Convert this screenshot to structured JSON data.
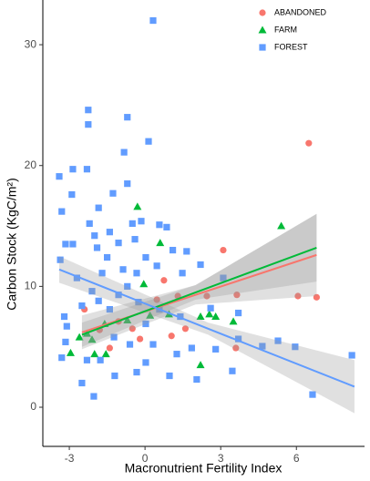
{
  "chart_data": {
    "type": "scatter",
    "x_label": "Macronutrient Fertility Index",
    "y_label": "Carbon Stock (KgC/m²)",
    "xlim": [
      -4.05,
      8.7
    ],
    "ylim": [
      -3.24,
      33.7
    ],
    "xticks": [
      -3,
      0,
      3,
      6
    ],
    "yticks": [
      0,
      10,
      20,
      30
    ],
    "grid": false,
    "legend": "top-right",
    "series": [
      {
        "name": "ABANDONED",
        "color": "#F8766D",
        "marker": "circle",
        "x": [
          6.49,
          3.1,
          6.06,
          6.8,
          3.64,
          0.75,
          1.3,
          2.45,
          0.47,
          3.6,
          1.6,
          -0.2,
          1.05,
          -2.4,
          -1.05,
          -1.8,
          -0.5,
          -1.4
        ],
        "y": [
          21.85,
          13.0,
          9.2,
          9.1,
          9.3,
          10.5,
          9.2,
          9.2,
          8.9,
          4.9,
          6.5,
          5.65,
          5.9,
          8.1,
          7.1,
          6.4,
          6.5,
          4.9
        ],
        "fit": {
          "x": [
            -2.5,
            2.0,
            6.8
          ],
          "y": [
            6.2,
            9.3,
            12.6
          ],
          "lower": [
            4.8,
            8.5,
            9.2
          ],
          "upper": [
            7.6,
            10.1,
            16.0
          ]
        }
      },
      {
        "name": "FARM",
        "color": "#00BA38",
        "marker": "triangle",
        "x": [
          -0.3,
          5.4,
          0.6,
          -0.05,
          2.55,
          3.5,
          2.8,
          2.2,
          2.2,
          -2.95,
          -2.6,
          -2.3,
          -2.0,
          -1.6,
          -0.7,
          0.2,
          -2.1,
          -1.55,
          0.95
        ],
        "y": [
          16.6,
          15.0,
          13.6,
          10.2,
          7.7,
          7.1,
          7.5,
          7.5,
          3.5,
          4.5,
          5.8,
          6.1,
          4.4,
          6.9,
          7.2,
          7.6,
          5.6,
          4.4,
          7.7
        ],
        "fit": {
          "x": [
            -2.5,
            2.0,
            6.8
          ],
          "y": [
            6.0,
            9.5,
            13.2
          ],
          "lower": [
            5.0,
            8.9,
            10.4
          ],
          "upper": [
            7.0,
            10.1,
            16.0
          ]
        }
      },
      {
        "name": "FOREST",
        "color": "#619CFF",
        "marker": "square",
        "x": [
          0.32,
          -2.25,
          -2.25,
          -0.7,
          0.14,
          -0.83,
          -3.4,
          -2.86,
          -2.9,
          -2.3,
          -1.84,
          -1.27,
          -0.7,
          -3.3,
          -2.2,
          -0.5,
          -0.15,
          0.57,
          0.86,
          -2.0,
          -1.4,
          -3.15,
          -2.86,
          -1.9,
          -1.05,
          -0.4,
          1.1,
          1.65,
          -3.36,
          -1.5,
          -0.87,
          0.03,
          0.47,
          1.48,
          -2.7,
          -2.1,
          -1.7,
          -0.7,
          -0.33,
          2.2,
          3.1,
          -2.5,
          -1.84,
          -1.05,
          -0.26,
          0.57,
          -3.2,
          -3.1,
          -1.4,
          0.03,
          1.4,
          2.6,
          3.7,
          3.7,
          2.8,
          1.85,
          -1.23,
          -0.6,
          0.32,
          1.26,
          4.65,
          5.27,
          5.95,
          8.2,
          6.64,
          3.46,
          2.05,
          0.97,
          -0.33,
          -2.03,
          -2.5,
          -1.2,
          0.03,
          -1.77,
          -3.15,
          -3.3,
          -2.3
        ],
        "y": [
          32.0,
          24.6,
          23.4,
          24.0,
          22.0,
          21.1,
          19.1,
          19.7,
          17.6,
          19.7,
          16.5,
          17.7,
          18.5,
          16.2,
          15.2,
          15.2,
          15.4,
          15.1,
          14.9,
          14.2,
          14.5,
          13.5,
          13.5,
          13.2,
          13.6,
          13.9,
          13.0,
          12.9,
          12.2,
          12.4,
          11.4,
          12.4,
          11.7,
          11.1,
          10.7,
          9.6,
          11.1,
          10.0,
          11.1,
          11.8,
          10.7,
          8.4,
          8.8,
          9.3,
          8.7,
          8.1,
          7.5,
          6.7,
          8.1,
          6.9,
          7.5,
          8.2,
          7.8,
          5.65,
          4.8,
          4.9,
          5.8,
          5.2,
          5.2,
          4.4,
          5.05,
          5.5,
          5.0,
          4.3,
          1.05,
          3.0,
          2.3,
          2.6,
          2.9,
          0.9,
          2.0,
          2.6,
          3.7,
          3.9,
          5.4,
          4.1,
          3.9
        ],
        "fit": {
          "x": [
            -3.4,
            2.5,
            8.3
          ],
          "y": [
            11.4,
            6.5,
            1.7
          ],
          "lower": [
            10.3,
            6.0,
            -0.5
          ],
          "upper": [
            12.5,
            7.0,
            3.9
          ]
        }
      }
    ]
  }
}
